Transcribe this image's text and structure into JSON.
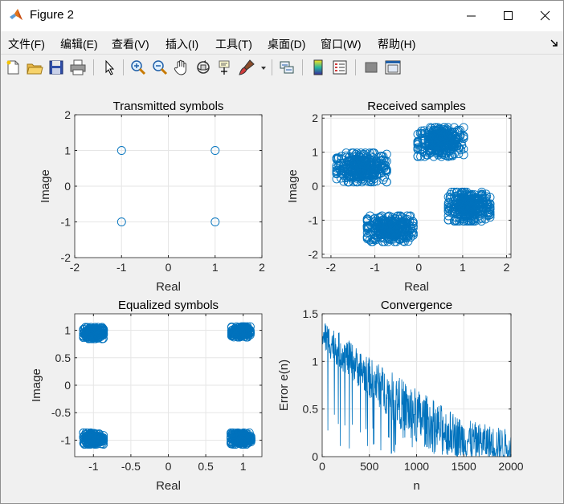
{
  "window": {
    "title": "Figure 2",
    "controls": {
      "minimize": "minimize-icon",
      "maximize": "maximize-icon",
      "close": "close-icon"
    }
  },
  "menubar": {
    "items": [
      "文件(F)",
      "编辑(E)",
      "查看(V)",
      "插入(I)",
      "工具(T)",
      "桌面(D)",
      "窗口(W)",
      "帮助(H)"
    ]
  },
  "toolbar": {
    "icons": [
      "new-figure-icon",
      "open-file-icon",
      "save-icon",
      "print-icon",
      "edit-plot-icon",
      "zoom-in-icon",
      "zoom-out-icon",
      "pan-icon",
      "rotate-3d-icon",
      "data-cursor-icon",
      "brush-icon",
      "brush-dropdown-icon",
      "link-plot-icon",
      "insert-colorbar-icon",
      "insert-legend-icon",
      "hide-plot-tools-icon",
      "show-plot-tools-icon"
    ]
  },
  "colors": {
    "marker": "#0072bd",
    "grid": "#e6e6e6",
    "axes_bg": "#ffffff",
    "axes_edge": "#262626"
  },
  "chart_data": [
    {
      "type": "scatter",
      "title": "Transmitted symbols",
      "xlabel": "Real",
      "ylabel": "Image",
      "xlim": [
        -2,
        2
      ],
      "ylim": [
        -2,
        2
      ],
      "xticks": [
        "-2",
        "-1",
        "0",
        "1",
        "2"
      ],
      "yticks": [
        "-2",
        "-1",
        "0",
        "1",
        "2"
      ],
      "grid": true,
      "marker": "circle",
      "points": [
        [
          -1,
          1
        ],
        [
          1,
          1
        ],
        [
          -1,
          -1
        ],
        [
          1,
          -1
        ]
      ]
    },
    {
      "type": "scatter",
      "title": "Received samples",
      "xlabel": "Real",
      "ylabel": "Image",
      "xlim": [
        -2.2,
        2.1
      ],
      "ylim": [
        -2.1,
        2.1
      ],
      "xticks": [
        "-2",
        "-1",
        "0",
        "1",
        "2"
      ],
      "yticks": [
        "-2",
        "-1",
        "0",
        "1",
        "2"
      ],
      "grid": true,
      "marker": "circle",
      "clusters": [
        {
          "center": [
            -1.3,
            0.55
          ],
          "spread": [
            0.6,
            0.45
          ]
        },
        {
          "center": [
            0.5,
            1.3
          ],
          "spread": [
            0.55,
            0.45
          ]
        },
        {
          "center": [
            -0.65,
            -1.25
          ],
          "spread": [
            0.55,
            0.4
          ]
        },
        {
          "center": [
            1.15,
            -0.6
          ],
          "spread": [
            0.5,
            0.45
          ]
        }
      ]
    },
    {
      "type": "scatter",
      "title": "Equalized symbols",
      "xlabel": "Real",
      "ylabel": "Image",
      "xlim": [
        -1.25,
        1.25
      ],
      "ylim": [
        -1.3,
        1.3
      ],
      "xticks": [
        "-1",
        "-0.5",
        "0",
        "0.5",
        "1"
      ],
      "yticks": [
        "-1",
        "-0.5",
        "0",
        "0.5",
        "1"
      ],
      "grid": true,
      "marker": "circle",
      "clusters": [
        {
          "center": [
            -1,
            0.95
          ],
          "spread": [
            0.14,
            0.11
          ]
        },
        {
          "center": [
            0.97,
            0.97
          ],
          "spread": [
            0.13,
            0.1
          ]
        },
        {
          "center": [
            -1,
            -0.97
          ],
          "spread": [
            0.14,
            0.11
          ]
        },
        {
          "center": [
            0.97,
            -0.97
          ],
          "spread": [
            0.14,
            0.11
          ]
        }
      ]
    },
    {
      "type": "line",
      "title": "Convergence",
      "xlabel": "n",
      "ylabel": "Error e(n)",
      "xlim": [
        0,
        2000
      ],
      "ylim": [
        0,
        1.5
      ],
      "xticks": [
        "0",
        "500",
        "1000",
        "1500",
        "2000"
      ],
      "yticks": [
        "0",
        "0.5",
        "1",
        "1.5"
      ],
      "grid": true,
      "series": [
        {
          "approx_envelope": {
            "x": [
              0,
              500,
              1000,
              1500,
              2000
            ],
            "mean": [
              1.3,
              0.85,
              0.45,
              0.2,
              0.13
            ],
            "max": [
              1.5,
              1.1,
              0.8,
              0.45,
              0.33
            ]
          }
        }
      ]
    }
  ]
}
